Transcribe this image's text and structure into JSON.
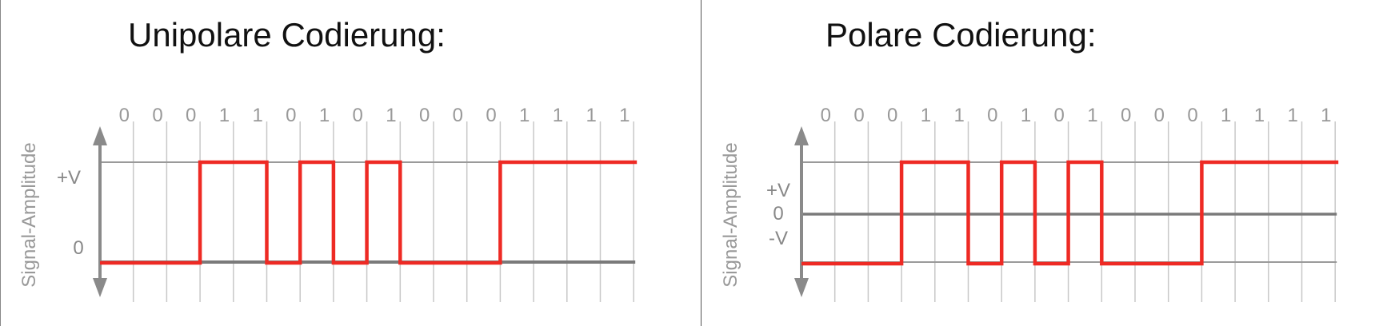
{
  "panels": [
    {
      "title": "Unipolare Codierung:",
      "ylabel": "Signal-Amplitude",
      "levels": [
        "+V",
        "0"
      ],
      "bits": [
        "0",
        "0",
        "0",
        "1",
        "1",
        "0",
        "1",
        "0",
        "1",
        "0",
        "0",
        "0",
        "1",
        "1",
        "1",
        "1"
      ],
      "encoding": "unipolar"
    },
    {
      "title": "Polare Codierung:",
      "ylabel": "Signal-Amplitude",
      "levels": [
        "+V",
        "0",
        "-V"
      ],
      "bits": [
        "0",
        "0",
        "0",
        "1",
        "1",
        "0",
        "1",
        "0",
        "1",
        "0",
        "0",
        "0",
        "1",
        "1",
        "1",
        "1"
      ],
      "encoding": "polar"
    }
  ],
  "colors": {
    "signal": "#ee2a24",
    "grid": "#c8c8c8",
    "axis": "#8a8a8a",
    "baseline": "#7a7a7a"
  }
}
